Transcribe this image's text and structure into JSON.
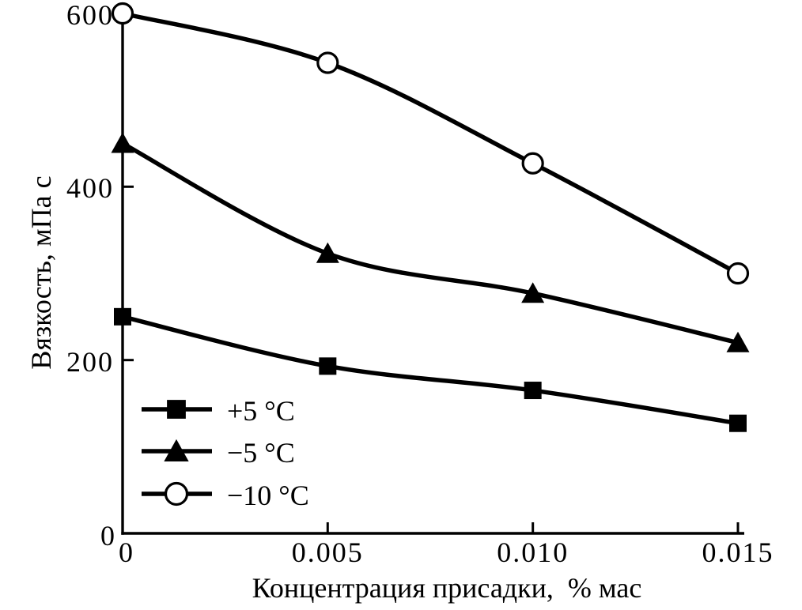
{
  "chart_data": {
    "type": "line",
    "title": "",
    "xlabel": "Концентрация присадки,  % мас",
    "ylabel": "Вязкость, мПа с",
    "x": [
      0,
      0.005,
      0.01,
      0.015
    ],
    "x_tick_labels": [
      "0",
      "0.005",
      "0.010",
      "0.015"
    ],
    "y_tick_labels": [
      "0",
      "200",
      "400",
      "600"
    ],
    "xlim": [
      0,
      0.015
    ],
    "ylim": [
      0,
      600
    ],
    "grid": false,
    "legend_position": "inside lower-left",
    "line_color": "#000000",
    "background_color": "#ffffff",
    "series": [
      {
        "name": "+5 °C",
        "marker": "filled-square",
        "values": [
          250,
          193,
          165,
          127
        ]
      },
      {
        "name": "−5 °C",
        "marker": "filled-triangle",
        "values": [
          450,
          323,
          277,
          220
        ]
      },
      {
        "name": "−10 °C",
        "marker": "open-circle",
        "values": [
          600,
          543,
          427,
          300
        ]
      }
    ]
  }
}
